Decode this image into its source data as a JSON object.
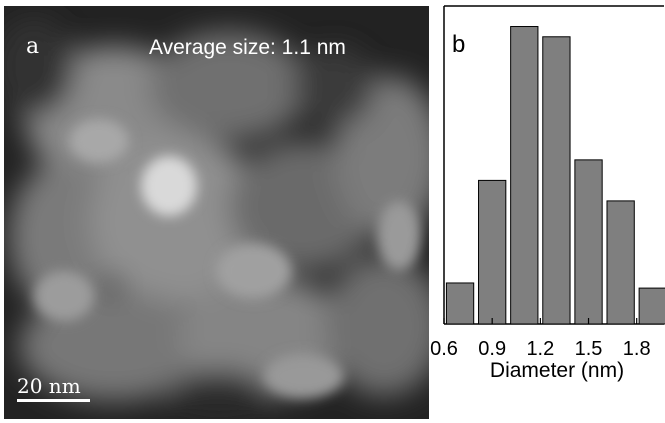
{
  "panel_a": {
    "label": "a",
    "annotation": "Average size: 1.1 nm",
    "scale_bar_label": "20 nm"
  },
  "chart_data": {
    "type": "bar",
    "panel_label": "b",
    "categories": [
      0.7,
      0.9,
      1.1,
      1.3,
      1.5,
      1.7,
      1.9
    ],
    "values": [
      4,
      14,
      29,
      28,
      16,
      12,
      3.5
    ],
    "xlabel": "Diameter (nm)",
    "ylabel": "",
    "xticks": [
      "0.6",
      "0.9",
      "1.2",
      "1.5",
      "1.8"
    ],
    "xtick_values": [
      0.6,
      0.9,
      1.2,
      1.5,
      1.8
    ],
    "xlim": [
      0.6,
      1.97
    ],
    "ylim": [
      0,
      31
    ],
    "bar_width": 0.17,
    "bar_color": "#7f7f7f",
    "bar_edge_color": "#000000"
  }
}
